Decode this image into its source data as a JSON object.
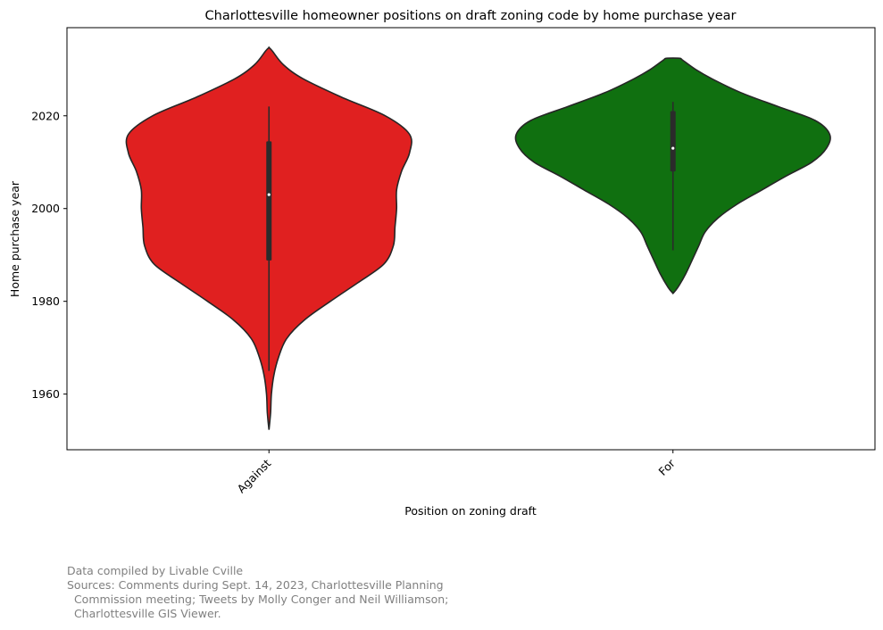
{
  "chart_data": {
    "type": "violin",
    "title": "Charlottesville homeowner positions on draft zoning code by home purchase year",
    "xlabel": "Position on zoning draft",
    "ylabel": "Home purchase year",
    "categories": [
      "Against",
      "For"
    ],
    "ylim": [
      1948,
      2039
    ],
    "yticks": [
      1960,
      1980,
      2000,
      2020
    ],
    "colors": {
      "Against": "#e02020",
      "For": "#107010"
    },
    "violins": [
      {
        "category": "Against",
        "color": "#e02020",
        "median": 2003,
        "q1": 1988.8,
        "q3": 2014.5,
        "whisker_low": 1965,
        "whisker_high": 2022,
        "min": 1952.3,
        "max": 2034.7,
        "profile": [
          [
            1952.3,
            0.0
          ],
          [
            1956,
            0.01
          ],
          [
            1960,
            0.015
          ],
          [
            1964,
            0.03
          ],
          [
            1968,
            0.06
          ],
          [
            1972,
            0.11
          ],
          [
            1976,
            0.22
          ],
          [
            1980,
            0.38
          ],
          [
            1984,
            0.55
          ],
          [
            1988,
            0.71
          ],
          [
            1992,
            0.77
          ],
          [
            1996,
            0.78
          ],
          [
            2000,
            0.79
          ],
          [
            2004,
            0.79
          ],
          [
            2008,
            0.82
          ],
          [
            2012,
            0.87
          ],
          [
            2016,
            0.87
          ],
          [
            2020,
            0.72
          ],
          [
            2024,
            0.45
          ],
          [
            2028,
            0.21
          ],
          [
            2031,
            0.09
          ],
          [
            2034,
            0.02
          ],
          [
            2034.7,
            0.0
          ]
        ]
      },
      {
        "category": "For",
        "color": "#107010",
        "median": 2013,
        "q1": 2008,
        "q3": 2021,
        "whisker_low": 1991,
        "whisker_high": 2023,
        "min": 1981.7,
        "max": 2032.4,
        "profile": [
          [
            1981.7,
            0.0
          ],
          [
            1983,
            0.03
          ],
          [
            1986,
            0.08
          ],
          [
            1989,
            0.12
          ],
          [
            1992,
            0.16
          ],
          [
            1995,
            0.2
          ],
          [
            1998,
            0.28
          ],
          [
            2001,
            0.4
          ],
          [
            2004,
            0.55
          ],
          [
            2007,
            0.7
          ],
          [
            2010,
            0.86
          ],
          [
            2013,
            0.95
          ],
          [
            2016,
            0.97
          ],
          [
            2019,
            0.88
          ],
          [
            2022,
            0.65
          ],
          [
            2025,
            0.42
          ],
          [
            2028,
            0.24
          ],
          [
            2030,
            0.14
          ],
          [
            2032,
            0.06
          ],
          [
            2032.4,
            0.04
          ]
        ]
      }
    ]
  },
  "caption": "Data compiled by Livable Cville\nSources: Comments during Sept. 14, 2023, Charlottesville Planning\n  Commission meeting; Tweets by Molly Conger and Neil Williamson;\n  Charlottesville GIS Viewer."
}
